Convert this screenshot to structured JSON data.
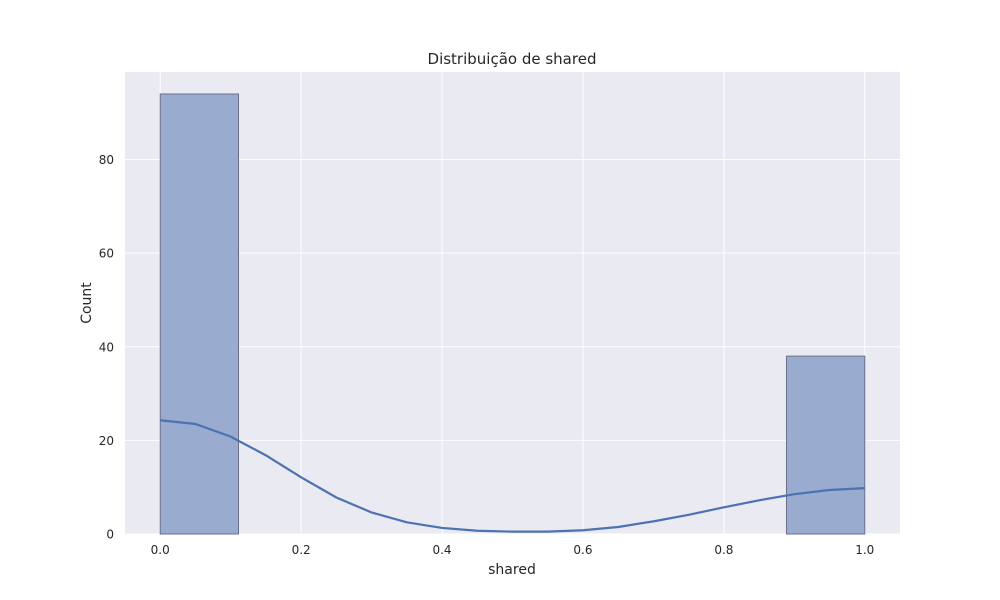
{
  "chart_data": {
    "type": "bar",
    "title": "Distribuição de shared",
    "xlabel": "shared",
    "ylabel": "Count",
    "xlim": [
      -0.05,
      1.05
    ],
    "ylim": [
      0,
      98.7
    ],
    "x_ticks": [
      0.0,
      0.2,
      0.4,
      0.6,
      0.8,
      1.0
    ],
    "x_tick_labels": [
      "0.0",
      "0.2",
      "0.4",
      "0.6",
      "0.8",
      "1.0"
    ],
    "y_ticks": [
      0,
      20,
      40,
      60,
      80
    ],
    "y_tick_labels": [
      "0",
      "20",
      "40",
      "60",
      "80"
    ],
    "grid": true,
    "bars": [
      {
        "x0": 0.0,
        "x1": 0.1111,
        "value": 94
      },
      {
        "x0": 0.8889,
        "x1": 1.0,
        "value": 38
      }
    ],
    "kde": {
      "x": [
        0.0,
        0.05,
        0.1,
        0.15,
        0.2,
        0.25,
        0.3,
        0.35,
        0.4,
        0.45,
        0.5,
        0.55,
        0.6,
        0.65,
        0.7,
        0.75,
        0.8,
        0.85,
        0.9,
        0.95,
        1.0
      ],
      "y": [
        24.3,
        23.5,
        20.8,
        16.8,
        12.1,
        7.8,
        4.6,
        2.5,
        1.3,
        0.7,
        0.5,
        0.5,
        0.8,
        1.5,
        2.7,
        4.1,
        5.7,
        7.2,
        8.5,
        9.4,
        9.8
      ]
    },
    "colors": {
      "background": "#eaeaf2",
      "grid": "#ffffff",
      "bar_fill": "#9aabd0",
      "bar_edge": "#6a7088",
      "kde_line": "#4c72b0",
      "text": "#262626"
    }
  }
}
